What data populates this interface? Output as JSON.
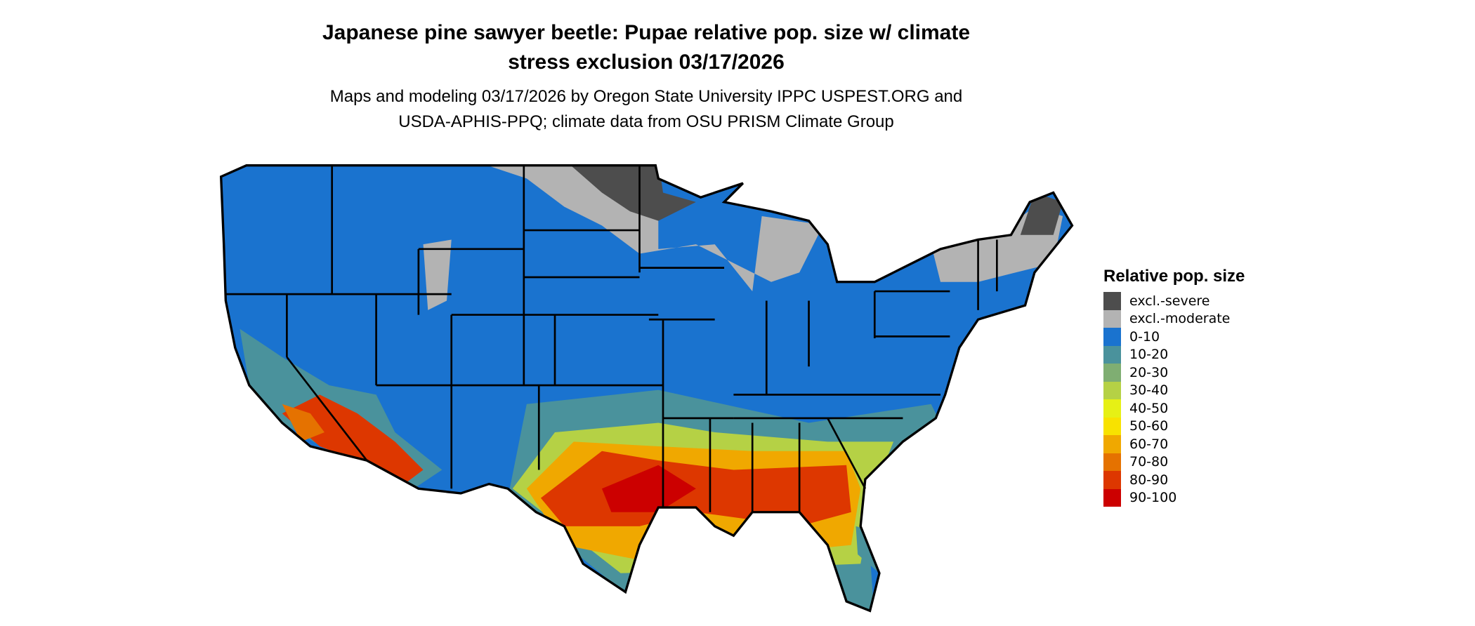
{
  "title": {
    "line1": "Japanese pine sawyer beetle: Pupae relative pop. size w/ climate",
    "line2": "stress exclusion 03/17/2026"
  },
  "subtitle": {
    "line1": "Maps and modeling 03/17/2026 by Oregon State University IPPC USPEST.ORG and",
    "line2": "USDA-APHIS-PPQ; climate data from OSU PRISM Climate Group"
  },
  "legend": {
    "title": "Relative pop. size",
    "items": [
      {
        "label": "excl.-severe",
        "color": "#4d4d4d"
      },
      {
        "label": "excl.-moderate",
        "color": "#b3b3b3"
      },
      {
        "label": "0-10",
        "color": "#1a73cf"
      },
      {
        "label": "10-20",
        "color": "#4a929c"
      },
      {
        "label": "20-30",
        "color": "#7fae72"
      },
      {
        "label": "30-40",
        "color": "#b5d145"
      },
      {
        "label": "40-50",
        "color": "#e6f015"
      },
      {
        "label": "50-60",
        "color": "#f8e200"
      },
      {
        "label": "60-70",
        "color": "#f0a800"
      },
      {
        "label": "70-80",
        "color": "#e57200"
      },
      {
        "label": "80-90",
        "color": "#dd3700"
      },
      {
        "label": "90-100",
        "color": "#cc0000"
      }
    ]
  }
}
